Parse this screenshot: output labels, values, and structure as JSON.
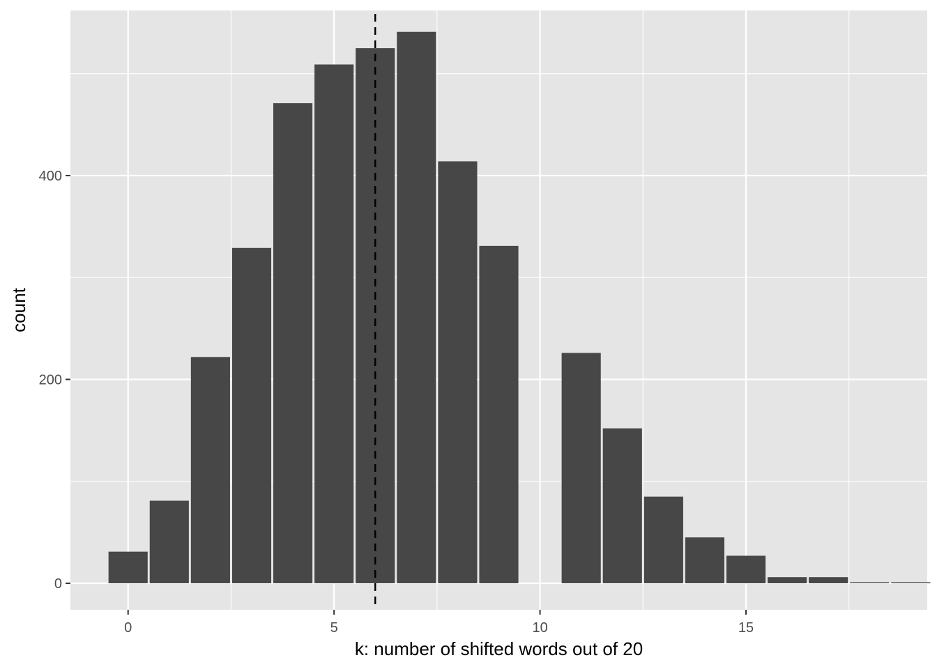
{
  "chart_data": {
    "type": "bar",
    "subtype": "histogram",
    "title": "",
    "xlabel": "k: number of shifted words out of 20",
    "ylabel": "count",
    "bin_width": 0.95,
    "bins": [
      {
        "x": 0,
        "count": 31
      },
      {
        "x": 1,
        "count": 81
      },
      {
        "x": 2,
        "count": 222
      },
      {
        "x": 3,
        "count": 329
      },
      {
        "x": 4,
        "count": 471
      },
      {
        "x": 5,
        "count": 509
      },
      {
        "x": 6,
        "count": 525
      },
      {
        "x": 7,
        "count": 541
      },
      {
        "x": 8,
        "count": 414
      },
      {
        "x": 9,
        "count": 331
      },
      {
        "x": 10,
        "count": 0
      },
      {
        "x": 11,
        "count": 226
      },
      {
        "x": 12,
        "count": 152
      },
      {
        "x": 13,
        "count": 85
      },
      {
        "x": 14,
        "count": 45
      },
      {
        "x": 15,
        "count": 27
      },
      {
        "x": 16,
        "count": 6
      },
      {
        "x": 17,
        "count": 6
      },
      {
        "x": 18,
        "count": 1
      },
      {
        "x": 19,
        "count": 1
      }
    ],
    "vline": {
      "x": 6,
      "style": "dashed",
      "color": "#000000"
    },
    "xlim": [
      -1.4,
      19.4
    ],
    "ylim": [
      -26,
      562
    ],
    "x_ticks": [
      0,
      5,
      10,
      15
    ],
    "x_tick_labels": [
      "0",
      "5",
      "10",
      "15"
    ],
    "y_ticks": [
      0,
      200,
      400
    ],
    "y_tick_labels": [
      "0",
      "200",
      "400"
    ],
    "x_minor_ticks": [
      2.5,
      7.5,
      12.5,
      17.5
    ],
    "y_minor_ticks": [
      100,
      300,
      500
    ],
    "grid": true,
    "colors": {
      "panel_background": "#e5e5e5",
      "grid": "#ffffff",
      "bar_fill": "#474747",
      "tick_label": "#4d4d4d",
      "axis_title": "#000000"
    }
  }
}
